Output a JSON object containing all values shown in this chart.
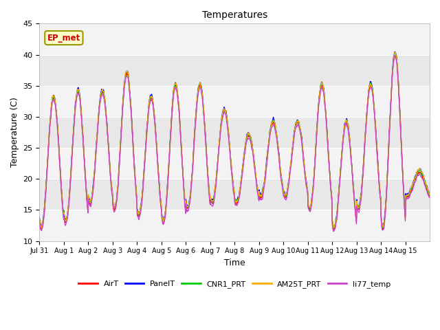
{
  "title": "Temperatures",
  "xlabel": "Time",
  "ylabel": "Temperature (C)",
  "ylim": [
    10,
    45
  ],
  "series_names": [
    "AirT",
    "PanelT",
    "CNR1_PRT",
    "AM25T_PRT",
    "li77_temp"
  ],
  "series_colors": [
    "#ff0000",
    "#0000ff",
    "#00cc00",
    "#ffaa00",
    "#cc44cc"
  ],
  "annotation_text": "EP_met",
  "annotation_box_color": "#ffffcc",
  "annotation_border_color": "#999900",
  "annotation_text_color": "#cc0000",
  "background_color": "#e8e8e8",
  "n_days": 16,
  "tick_labels": [
    "Jul 31",
    "Aug 1",
    "Aug 2",
    "Aug 3",
    "Aug 4",
    "Aug 5",
    "Aug 6",
    "Aug 7",
    "Aug 8",
    "Aug 9",
    "Aug 10",
    "Aug 11",
    "Aug 12",
    "Aug 13",
    "Aug 14",
    "Aug 15"
  ],
  "samples_per_day": 96,
  "day_peaks": [
    33,
    34,
    34,
    37,
    33,
    35,
    35,
    31,
    27,
    29,
    29,
    35,
    29,
    35,
    40,
    21
  ],
  "day_mins": [
    12,
    13,
    16,
    15,
    14,
    13,
    15,
    16,
    16,
    17,
    17,
    15,
    12,
    15,
    12,
    17
  ],
  "offsets": [
    0.0,
    0.5,
    0.3,
    0.4,
    -0.3
  ],
  "figsize": [
    6.4,
    4.8
  ],
  "dpi": 100
}
